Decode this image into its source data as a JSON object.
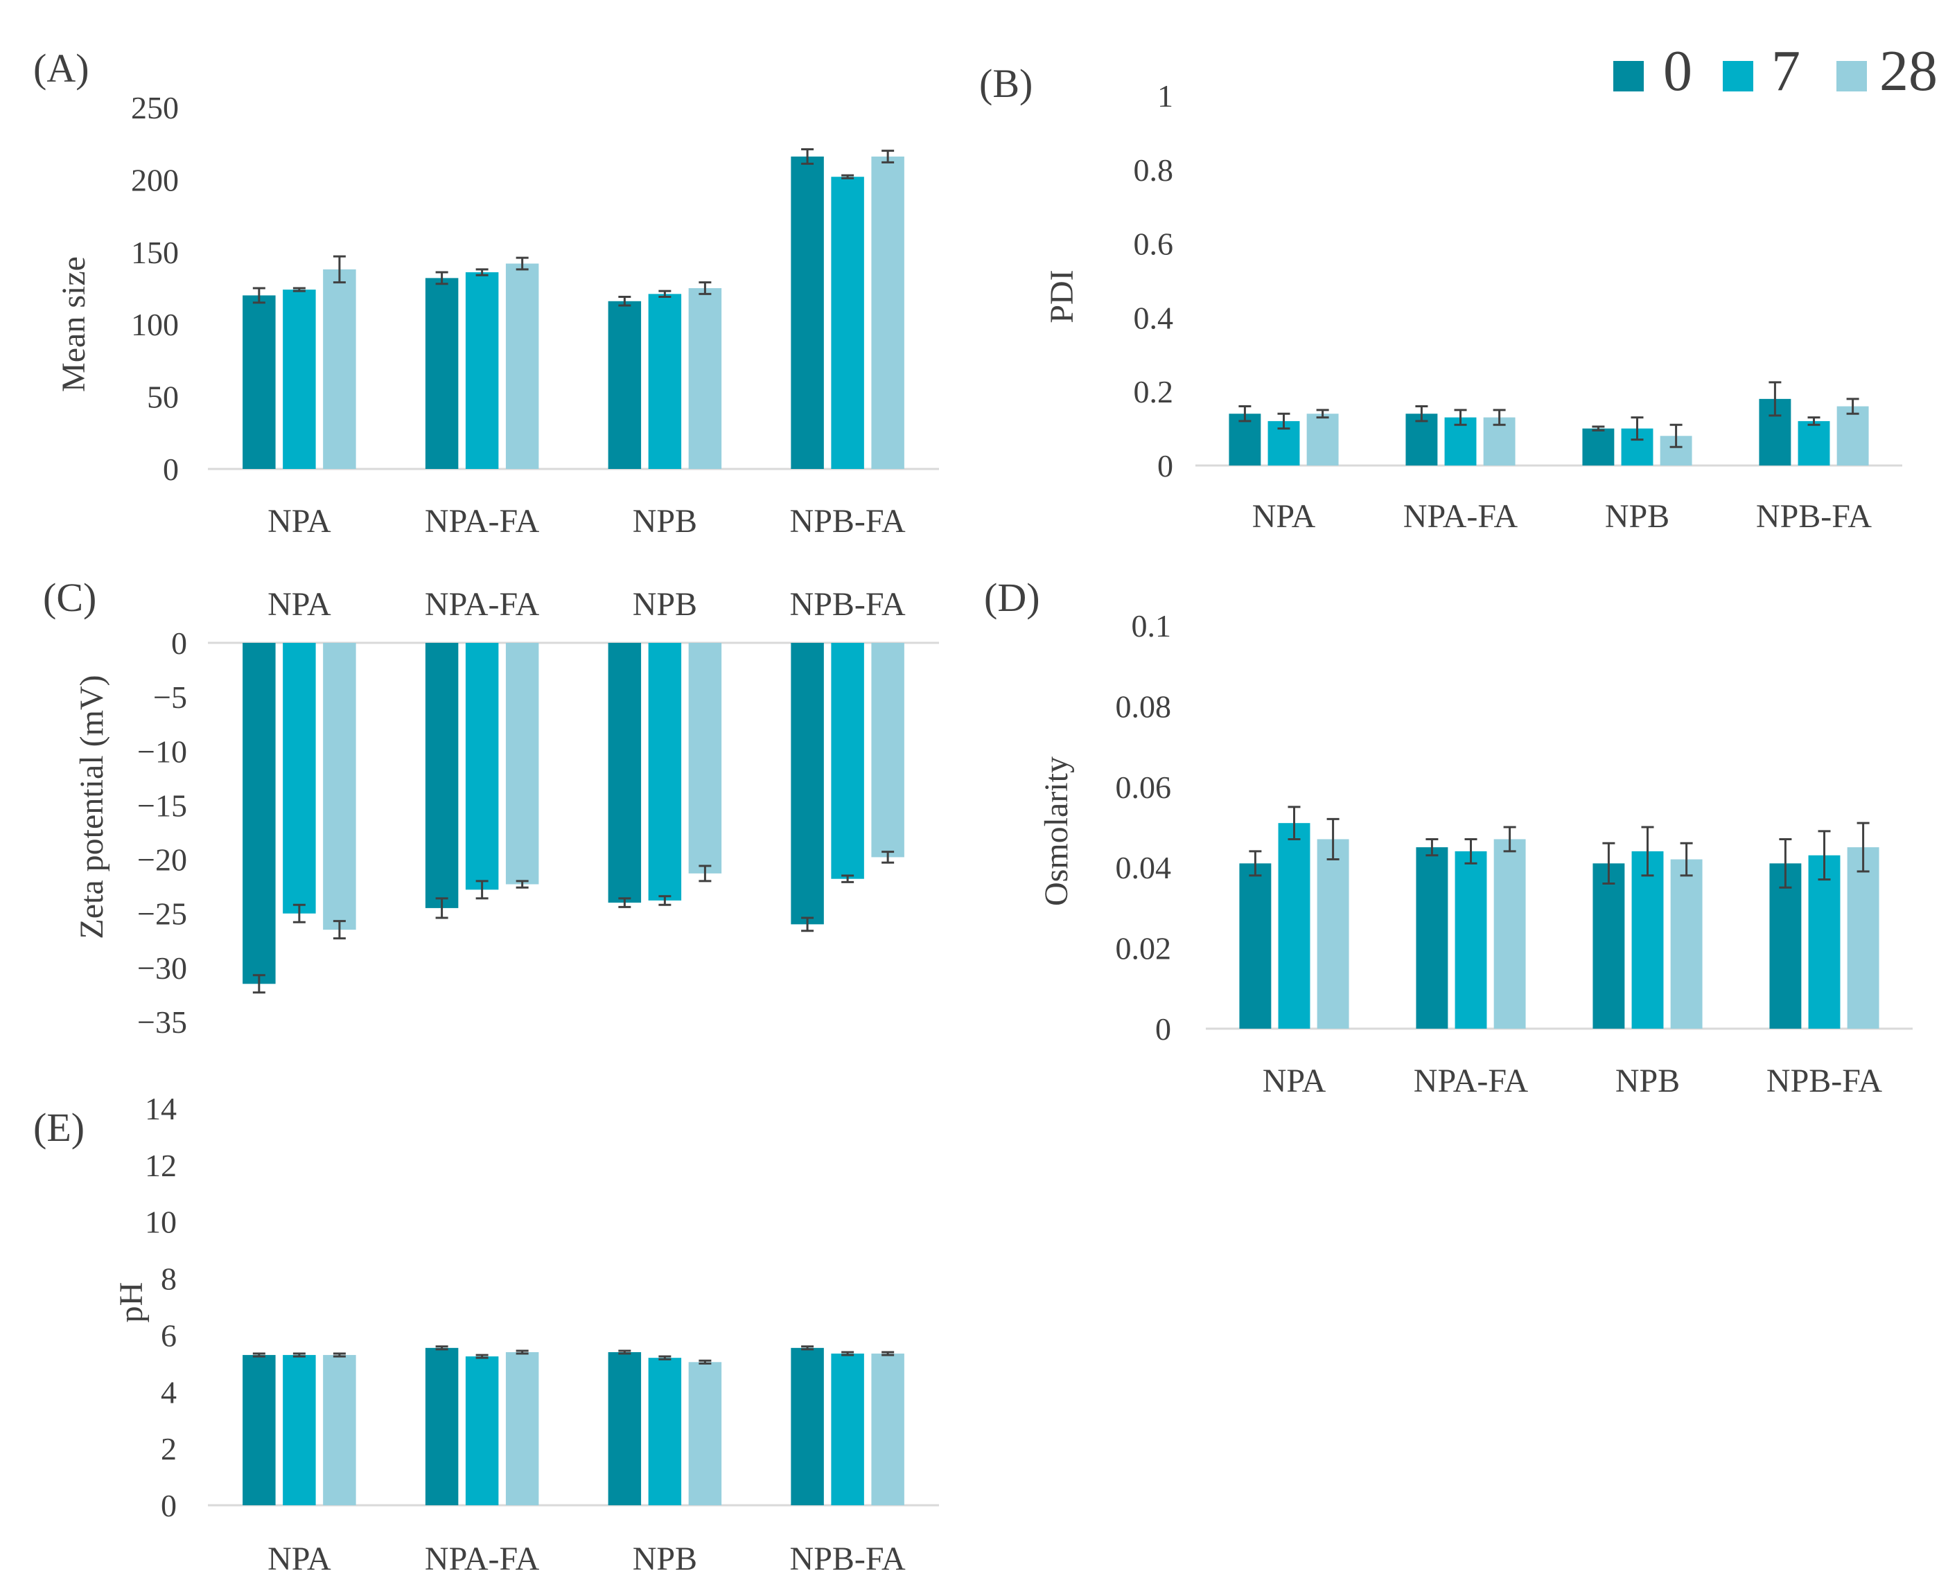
{
  "colors": {
    "0": "#008B9F",
    "7": "#00AFC8",
    "28": "#96CFDD",
    "axis": "#D9D9D9",
    "error": "#404040"
  },
  "legend": [
    {
      "label": "0",
      "color": "#008B9F"
    },
    {
      "label": "7",
      "color": "#00AFC8"
    },
    {
      "label": "28",
      "color": "#96CFDD"
    }
  ],
  "chart_data": [
    {
      "id": "A",
      "panel_label": "(A)",
      "type": "bar",
      "ylabel": "Mean size",
      "ylim": [
        0,
        250
      ],
      "yticks": [
        "0",
        "50",
        "100",
        "150",
        "200",
        "250"
      ],
      "categories": [
        "NPA",
        "NPA-FA",
        "NPB",
        "NPB-FA"
      ],
      "series": [
        {
          "name": "0",
          "values": [
            120,
            132,
            116,
            216
          ],
          "errors": [
            5,
            4,
            3,
            5
          ]
        },
        {
          "name": "7",
          "values": [
            124,
            136,
            121,
            202
          ],
          "errors": [
            1,
            2,
            2,
            1
          ]
        },
        {
          "name": "28",
          "values": [
            138,
            142,
            125,
            216
          ],
          "errors": [
            9,
            4,
            4,
            4
          ]
        }
      ]
    },
    {
      "id": "B",
      "panel_label": "(B)",
      "type": "bar",
      "ylabel": "PDI",
      "ylim": [
        0,
        1
      ],
      "yticks": [
        "0",
        "0.2",
        "0.4",
        "0.6",
        "0.8",
        "1"
      ],
      "categories": [
        "NPA",
        "NPA-FA",
        "NPB",
        "NPB-FA"
      ],
      "series": [
        {
          "name": "0",
          "values": [
            0.14,
            0.14,
            0.1,
            0.18
          ],
          "errors": [
            0.02,
            0.02,
            0.005,
            0.045
          ]
        },
        {
          "name": "7",
          "values": [
            0.12,
            0.13,
            0.1,
            0.12
          ],
          "errors": [
            0.02,
            0.02,
            0.03,
            0.01
          ]
        },
        {
          "name": "28",
          "values": [
            0.14,
            0.13,
            0.08,
            0.16
          ],
          "errors": [
            0.01,
            0.02,
            0.03,
            0.02
          ]
        }
      ]
    },
    {
      "id": "C",
      "panel_label": "(C)",
      "type": "bar",
      "ylabel": "Zeta potential (mV)",
      "ylim": [
        -35,
        0
      ],
      "yticks": [
        "0",
        "−5",
        "−10",
        "−15",
        "−20",
        "−25",
        "−30",
        "−35"
      ],
      "categories": [
        "NPA",
        "NPA-FA",
        "NPB",
        "NPB-FA"
      ],
      "series": [
        {
          "name": "0",
          "values": [
            -31.5,
            -24.5,
            -24.0,
            -26.0
          ],
          "errors": [
            0.8,
            0.9,
            0.4,
            0.6
          ]
        },
        {
          "name": "7",
          "values": [
            -25.0,
            -22.8,
            -23.8,
            -21.8
          ],
          "errors": [
            0.8,
            0.8,
            0.4,
            0.3
          ]
        },
        {
          "name": "28",
          "values": [
            -26.5,
            -22.3,
            -21.3,
            -19.8
          ],
          "errors": [
            0.8,
            0.3,
            0.7,
            0.5
          ]
        }
      ]
    },
    {
      "id": "D",
      "panel_label": "(D)",
      "type": "bar",
      "ylabel": "Osmolarity",
      "ylim": [
        0,
        0.1
      ],
      "yticks": [
        "0",
        "0.02",
        "0.04",
        "0.06",
        "0.08",
        "0.1"
      ],
      "categories": [
        "NPA",
        "NPA-FA",
        "NPB",
        "NPB-FA"
      ],
      "series": [
        {
          "name": "0",
          "values": [
            0.041,
            0.045,
            0.041,
            0.041
          ],
          "errors": [
            0.003,
            0.002,
            0.005,
            0.006
          ]
        },
        {
          "name": "7",
          "values": [
            0.051,
            0.044,
            0.044,
            0.043
          ],
          "errors": [
            0.004,
            0.003,
            0.006,
            0.006
          ]
        },
        {
          "name": "28",
          "values": [
            0.047,
            0.047,
            0.042,
            0.045
          ],
          "errors": [
            0.005,
            0.003,
            0.004,
            0.006
          ]
        }
      ]
    },
    {
      "id": "E",
      "panel_label": "(E)",
      "type": "bar",
      "ylabel": "pH",
      "ylim": [
        0,
        14
      ],
      "yticks": [
        "0",
        "2",
        "4",
        "6",
        "8",
        "10",
        "12",
        "14"
      ],
      "categories": [
        "NPA",
        "NPA-FA",
        "NPB",
        "NPB-FA"
      ],
      "series": [
        {
          "name": "0",
          "values": [
            5.3,
            5.55,
            5.4,
            5.55
          ],
          "errors": [
            0.05,
            0.05,
            0.05,
            0.05
          ]
        },
        {
          "name": "7",
          "values": [
            5.3,
            5.25,
            5.2,
            5.35
          ],
          "errors": [
            0.05,
            0.05,
            0.05,
            0.05
          ]
        },
        {
          "name": "28",
          "values": [
            5.3,
            5.4,
            5.05,
            5.35
          ],
          "errors": [
            0.05,
            0.05,
            0.05,
            0.05
          ]
        }
      ]
    }
  ]
}
